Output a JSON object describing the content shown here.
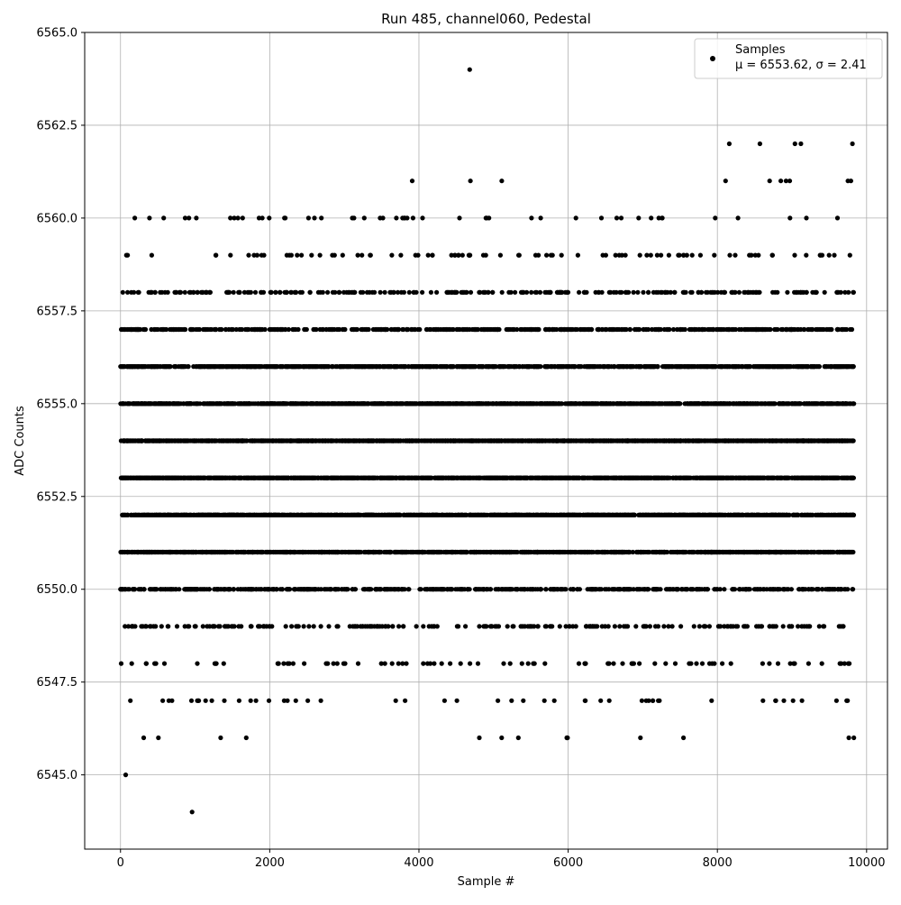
{
  "chart_data": {
    "type": "scatter",
    "title": "Run 485, channel060, Pedestal",
    "xlabel": "Sample #",
    "ylabel": "ADC Counts",
    "xlim": [
      -480,
      10280
    ],
    "ylim": [
      6543.0,
      6565.0
    ],
    "xticks": [
      0,
      2000,
      4000,
      6000,
      8000,
      10000
    ],
    "yticks": [
      6545.0,
      6547.5,
      6550.0,
      6552.5,
      6555.0,
      6557.5,
      6560.0,
      6562.5,
      6565.0
    ],
    "ytick_labels": [
      "6545.0",
      "6547.5",
      "6550.0",
      "6552.5",
      "6555.0",
      "6557.5",
      "6560.0",
      "6562.5",
      "6565.0"
    ],
    "xtick_labels": [
      "0",
      "2000",
      "4000",
      "6000",
      "8000",
      "10000"
    ],
    "grid": true,
    "legend_position": "top-right",
    "marker_color": "#000000",
    "series": [
      {
        "name": "Samples",
        "stats_label": "μ = 6553.62, σ = 2.41",
        "sample_range": [
          0,
          9830
        ],
        "level_counts": [
          {
            "y": 6544,
            "n": 1
          },
          {
            "y": 6545,
            "n": 1
          },
          {
            "y": 6546,
            "n": 14
          },
          {
            "y": 6547,
            "n": 50
          },
          {
            "y": 6548,
            "n": 85
          },
          {
            "y": 6549,
            "n": 220
          },
          {
            "y": 6550,
            "n": 580
          },
          {
            "y": 6551,
            "n": 1100
          },
          {
            "y": 6552,
            "n": 1500
          },
          {
            "y": 6553,
            "n": 1650
          },
          {
            "y": 6554,
            "n": 1600
          },
          {
            "y": 6555,
            "n": 1400
          },
          {
            "y": 6556,
            "n": 1050
          },
          {
            "y": 6557,
            "n": 600
          },
          {
            "y": 6558,
            "n": 280
          },
          {
            "y": 6559,
            "n": 90
          },
          {
            "y": 6560,
            "n": 50
          },
          {
            "y": 6561,
            "n": 10
          },
          {
            "y": 6562,
            "n": 5
          },
          {
            "y": 6564,
            "n": 1
          }
        ],
        "points": [
          {
            "x": 70,
            "y": 6545
          },
          {
            "x": 960,
            "y": 6544
          },
          {
            "x": 4680,
            "y": 6564
          },
          {
            "x": 3910,
            "y": 6561
          },
          {
            "x": 4690,
            "y": 6561
          },
          {
            "x": 5110,
            "y": 6561
          },
          {
            "x": 8110,
            "y": 6561
          },
          {
            "x": 8700,
            "y": 6561
          },
          {
            "x": 8850,
            "y": 6561
          },
          {
            "x": 8920,
            "y": 6561
          },
          {
            "x": 8970,
            "y": 6561
          },
          {
            "x": 9750,
            "y": 6561
          },
          {
            "x": 9790,
            "y": 6561
          },
          {
            "x": 8160,
            "y": 6562
          },
          {
            "x": 8570,
            "y": 6562
          },
          {
            "x": 9040,
            "y": 6562
          },
          {
            "x": 9120,
            "y": 6562
          },
          {
            "x": 9810,
            "y": 6562
          }
        ]
      }
    ]
  }
}
